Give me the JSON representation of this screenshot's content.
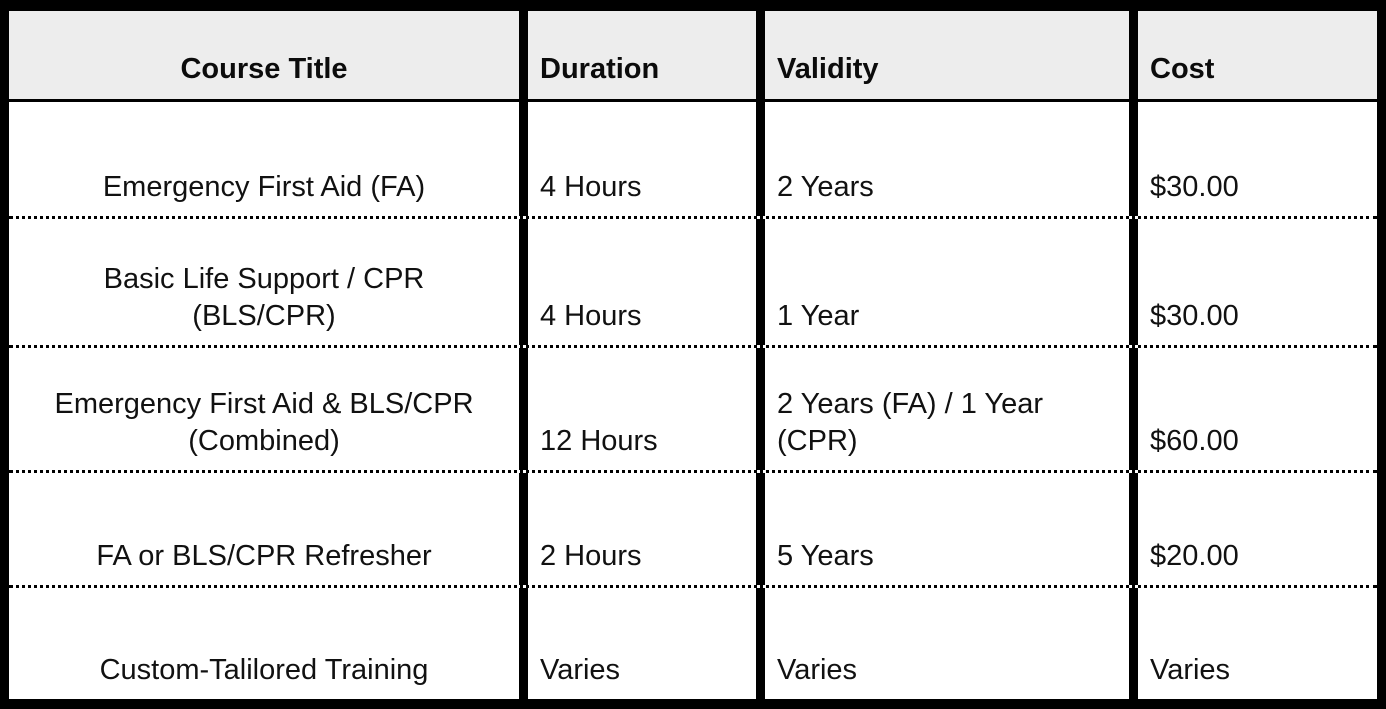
{
  "table": {
    "title": "course-pricing-table",
    "headers": [
      "Course Title",
      "Duration",
      "Validity",
      "Cost"
    ],
    "rows": [
      {
        "course": "Emergency First Aid (FA)",
        "duration": "4 Hours",
        "validity": "2 Years",
        "cost": "$30.00"
      },
      {
        "course": "Basic Life Support / CPR\n(BLS/CPR)",
        "duration": "4 Hours",
        "validity": "1 Year",
        "cost": "$30.00"
      },
      {
        "course": "Emergency First Aid & BLS/CPR\n(Combined)",
        "duration": "12 Hours",
        "validity": "2 Years (FA) / 1 Year\n(CPR)",
        "cost": "$60.00"
      },
      {
        "course": "FA or BLS/CPR Refresher",
        "duration": "2 Hours",
        "validity": "5 Years",
        "cost": "$20.00"
      },
      {
        "course": "Custom-Talilored Training",
        "duration": "Varies",
        "validity": "Varies",
        "cost": "Varies"
      }
    ],
    "colors": {
      "header_bg": "#ededed",
      "border": "#000000",
      "text": "#111111"
    }
  }
}
